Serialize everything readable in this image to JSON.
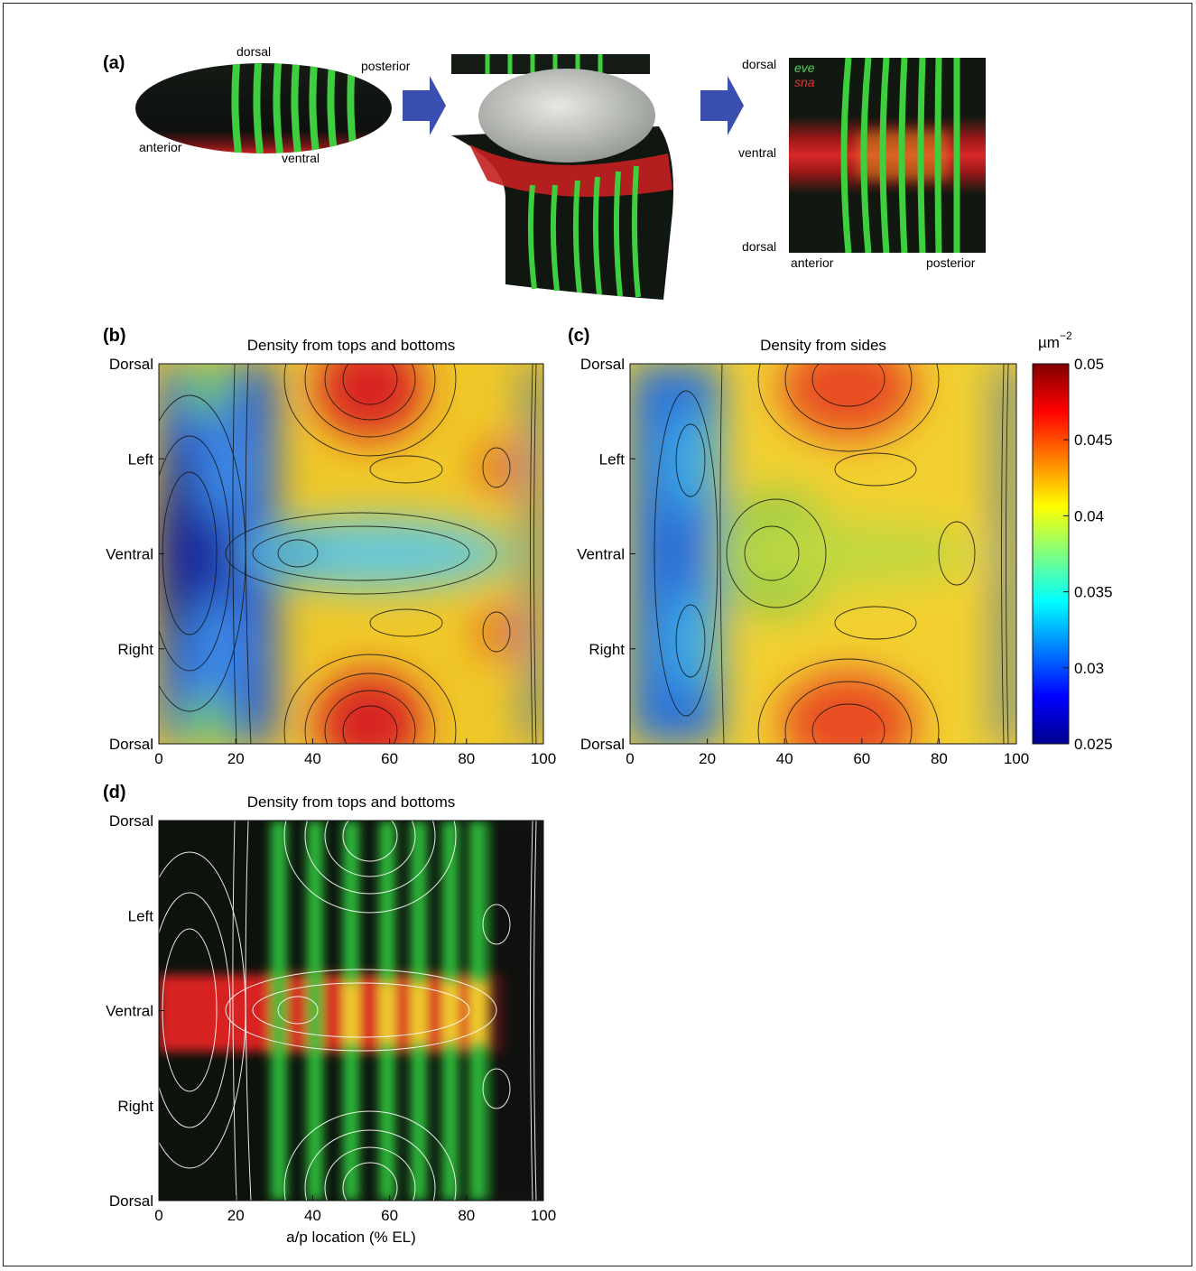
{
  "figure": {
    "panel_labels": [
      "(a)",
      "(b)",
      "(c)",
      "(d)"
    ]
  },
  "panel_a": {
    "embryo_labels": {
      "dorsal": "dorsal",
      "posterior": "posterior",
      "anterior": "anterior",
      "ventral": "ventral"
    },
    "flat_map_labels": {
      "dorsal_top": "dorsal",
      "ventral": "ventral",
      "dorsal_bottom": "dorsal",
      "anterior": "anterior",
      "posterior": "posterior"
    },
    "legend": [
      {
        "name": "eve",
        "color": "#4ed04e"
      },
      {
        "name": "sna",
        "color": "#e53030"
      }
    ],
    "arrow_color": "#3a4fb0"
  },
  "chart_data": [
    {
      "type": "heatmap",
      "panel": "(b)",
      "title": "Density from tops and bottoms",
      "xlabel": "",
      "x_ticks": [
        0,
        20,
        40,
        60,
        80,
        100
      ],
      "xlim": [
        0,
        100
      ],
      "y_tick_labels": [
        "Dorsal",
        "Left",
        "Ventral",
        "Right",
        "Dorsal"
      ],
      "contours": true
    },
    {
      "type": "heatmap",
      "panel": "(c)",
      "title": "Density from sides",
      "xlabel": "",
      "x_ticks": [
        0,
        20,
        40,
        60,
        80,
        100
      ],
      "xlim": [
        0,
        100
      ],
      "y_tick_labels": [
        "Dorsal",
        "Left",
        "Ventral",
        "Right",
        "Dorsal"
      ],
      "contours": true,
      "colorbar": {
        "unit": "µm",
        "unit_exponent": "−2",
        "range": [
          0.025,
          0.05
        ],
        "ticks": [
          "0.05",
          "0.045",
          "0.04",
          "0.035",
          "0.03",
          "0.025"
        ],
        "colormap": "jet"
      }
    },
    {
      "type": "heatmap",
      "panel": "(d)",
      "title": "Density from tops and bottoms",
      "xlabel": "a/p location (% EL)",
      "x_ticks": [
        0,
        20,
        40,
        60,
        80,
        100
      ],
      "xlim": [
        0,
        100
      ],
      "y_tick_labels": [
        "Dorsal",
        "Left",
        "Ventral",
        "Right",
        "Dorsal"
      ],
      "contours": true,
      "overlay": "eve / sna expression"
    }
  ]
}
